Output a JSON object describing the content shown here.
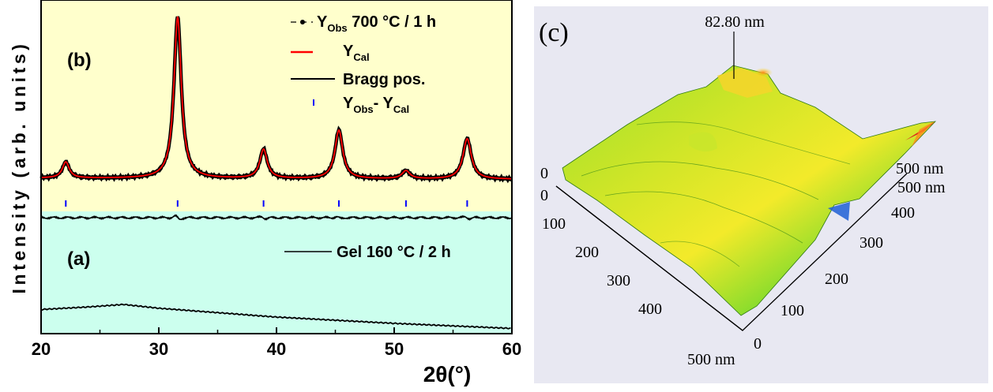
{
  "chart_data": [
    {
      "type": "line",
      "panel_labels": [
        "(b)",
        "(a)"
      ],
      "xlabel": "2θ(°)",
      "ylabel": "Intensity (arb. units)",
      "xlim": [
        20,
        60
      ],
      "x_ticks": [
        "20",
        "30",
        "40",
        "50",
        "60"
      ],
      "grid": false,
      "legend_position": "top-right",
      "legend_b": [
        {
          "key": "obs",
          "base": "Y",
          "sub": "Obs",
          "rest": " 700 °C / 1 h"
        },
        {
          "key": "cal",
          "base": "Y",
          "sub": "Cal",
          "rest": ""
        },
        {
          "key": "bragg",
          "text": "Bragg pos."
        },
        {
          "key": "diff",
          "text": "Y",
          "sub": "Obs",
          "mid": "- Y",
          "sub2": "Cal"
        }
      ],
      "legend_a": "Gel 160 °C  / 2 h",
      "colors": {
        "panel_b_bg": "#ffffcc",
        "panel_a_bg": "#ccffee",
        "observed": "#000000",
        "calculated": "#ff0000",
        "bragg_ticks": "#0000ff",
        "difference": "#000000"
      },
      "series": [
        {
          "name": "Y_Obs 700 °C / 1 h",
          "baseline": 0.03,
          "peaks": [
            {
              "x": 22.1,
              "height": 0.1,
              "fwhm": 0.7
            },
            {
              "x": 31.6,
              "height": 1.0,
              "fwhm": 0.75
            },
            {
              "x": 38.9,
              "height": 0.18,
              "fwhm": 0.75
            },
            {
              "x": 45.3,
              "height": 0.3,
              "fwhm": 0.8
            },
            {
              "x": 51.0,
              "height": 0.05,
              "fwhm": 0.8
            },
            {
              "x": 56.2,
              "height": 0.25,
              "fwhm": 0.85
            }
          ]
        },
        {
          "name": "Y_Cal",
          "same_as": "Y_Obs"
        },
        {
          "name": "Bragg pos.",
          "x": [
            22.1,
            31.6,
            38.9,
            45.3,
            51.0,
            56.2
          ]
        },
        {
          "name": "Y_Obs - Y_Cal",
          "x_features": [
            31.6,
            38.9,
            45.3,
            56.2
          ]
        },
        {
          "name": "Gel 160 °C / 2 h",
          "x": [
            20,
            24,
            27,
            30,
            40,
            50,
            60
          ],
          "y": [
            0.08,
            0.09,
            0.1,
            0.085,
            0.05,
            0.025,
            0.005
          ]
        }
      ]
    },
    {
      "type": "surface",
      "panel_label": "(c)",
      "peak_label": "82.80 nm",
      "axis_ticks_x": [
        "0",
        "100",
        "200",
        "300",
        "400",
        "500 nm"
      ],
      "axis_ticks_y": [
        "0",
        "100",
        "200",
        "300",
        "400",
        "500 nm"
      ],
      "corner_labels": [
        "0",
        "500 nm"
      ],
      "x_range_nm": [
        0,
        500
      ],
      "y_range_nm": [
        0,
        500
      ],
      "z_max_nm": 82.8,
      "colormap": [
        "#1f5fd6",
        "#19c8c0",
        "#3cd22a",
        "#a8e01c",
        "#ffe81a",
        "#ff8a1a",
        "#e0201a"
      ],
      "background": "#e8e8f2"
    }
  ]
}
